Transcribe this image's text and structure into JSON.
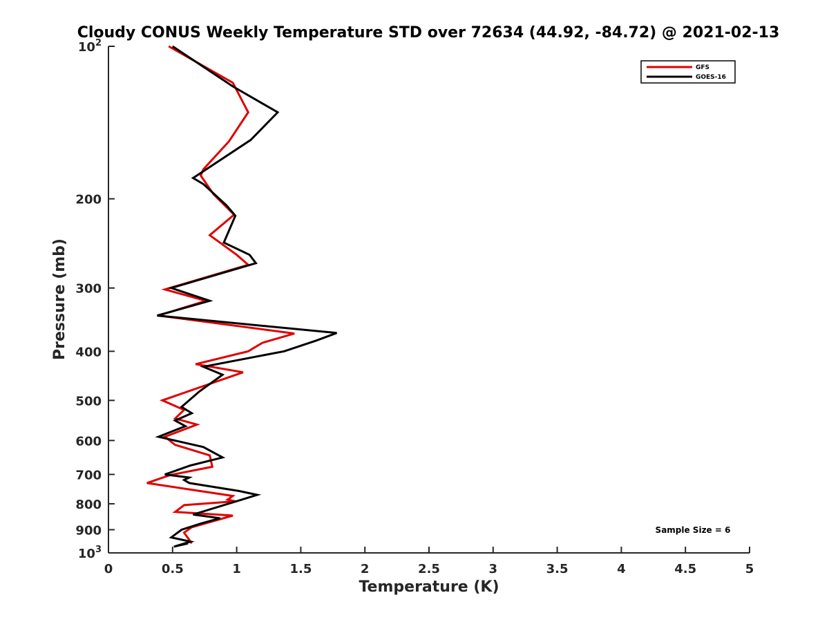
{
  "chart_data": {
    "type": "line",
    "title": "Cloudy CONUS Weekly Temperature STD over 72634 (44.92, -84.72) @ 2021-02-13",
    "xlabel": "Temperature (K)",
    "ylabel": "Pressure (mb)",
    "xlim": [
      0,
      5
    ],
    "ylim": [
      100,
      1000
    ],
    "y_scale": "log",
    "y_reversed": true,
    "grid": false,
    "legend_position": "top-right",
    "x_ticks": [
      "0",
      "0.5",
      "1",
      "1.5",
      "2",
      "2.5",
      "3",
      "3.5",
      "4",
      "4.5",
      "5"
    ],
    "y_ticks": [
      {
        "value": 100,
        "label": "10",
        "sup": "2"
      },
      {
        "value": 200,
        "label": "200",
        "sup": ""
      },
      {
        "value": 300,
        "label": "300",
        "sup": ""
      },
      {
        "value": 400,
        "label": "400",
        "sup": ""
      },
      {
        "value": 500,
        "label": "500",
        "sup": ""
      },
      {
        "value": 600,
        "label": "600",
        "sup": ""
      },
      {
        "value": 700,
        "label": "700",
        "sup": ""
      },
      {
        "value": 800,
        "label": "800",
        "sup": ""
      },
      {
        "value": 900,
        "label": "900",
        "sup": ""
      },
      {
        "value": 1000,
        "label": "10",
        "sup": "3"
      }
    ],
    "series": [
      {
        "name": "GFS",
        "color": "#e00000",
        "points": [
          [
            0.47,
            100
          ],
          [
            0.97,
            118
          ],
          [
            1.09,
            135
          ],
          [
            0.94,
            154
          ],
          [
            0.74,
            175
          ],
          [
            0.72,
            180
          ],
          [
            0.82,
            196
          ],
          [
            0.98,
            215
          ],
          [
            0.79,
            236
          ],
          [
            1.0,
            258
          ],
          [
            1.09,
            270
          ],
          [
            0.44,
            302
          ],
          [
            0.76,
            318
          ],
          [
            0.39,
            340
          ],
          [
            1.45,
            369
          ],
          [
            1.2,
            385
          ],
          [
            1.09,
            400
          ],
          [
            0.68,
            424
          ],
          [
            1.05,
            440
          ],
          [
            0.42,
            500
          ],
          [
            0.59,
            522
          ],
          [
            0.52,
            543
          ],
          [
            0.69,
            558
          ],
          [
            0.44,
            590
          ],
          [
            0.52,
            612
          ],
          [
            0.79,
            642
          ],
          [
            0.81,
            676
          ],
          [
            0.48,
            702
          ],
          [
            0.3,
            728
          ],
          [
            0.97,
            772
          ],
          [
            0.93,
            785
          ],
          [
            0.99,
            791
          ],
          [
            0.59,
            805
          ],
          [
            0.52,
            830
          ],
          [
            0.97,
            844
          ],
          [
            0.65,
            890
          ],
          [
            0.59,
            912
          ],
          [
            0.65,
            958
          ]
        ]
      },
      {
        "name": "GOES-16",
        "color": "#000000",
        "points": [
          [
            0.5,
            100
          ],
          [
            0.97,
            120
          ],
          [
            1.32,
            135
          ],
          [
            1.11,
            153
          ],
          [
            0.66,
            182
          ],
          [
            0.74,
            187
          ],
          [
            0.92,
            206
          ],
          [
            0.99,
            216
          ],
          [
            0.9,
            244
          ],
          [
            1.1,
            258
          ],
          [
            1.15,
            268
          ],
          [
            0.49,
            300
          ],
          [
            0.79,
            318
          ],
          [
            0.38,
            340
          ],
          [
            1.78,
            368
          ],
          [
            1.62,
            381
          ],
          [
            1.37,
            400
          ],
          [
            0.74,
            429
          ],
          [
            0.89,
            445
          ],
          [
            0.71,
            480
          ],
          [
            0.57,
            515
          ],
          [
            0.65,
            530
          ],
          [
            0.52,
            548
          ],
          [
            0.6,
            562
          ],
          [
            0.39,
            590
          ],
          [
            0.74,
            618
          ],
          [
            0.89,
            648
          ],
          [
            0.64,
            672
          ],
          [
            0.44,
            700
          ],
          [
            0.63,
            710
          ],
          [
            0.59,
            718
          ],
          [
            0.63,
            728
          ],
          [
            1.02,
            755
          ],
          [
            1.16,
            768
          ],
          [
            1.04,
            785
          ],
          [
            0.66,
            840
          ],
          [
            0.87,
            854
          ],
          [
            0.72,
            875
          ],
          [
            0.57,
            900
          ],
          [
            0.49,
            932
          ],
          [
            0.64,
            950
          ],
          [
            0.51,
            972
          ],
          [
            0.62,
            958
          ]
        ]
      }
    ],
    "annotation": "Sample Size = 6"
  }
}
